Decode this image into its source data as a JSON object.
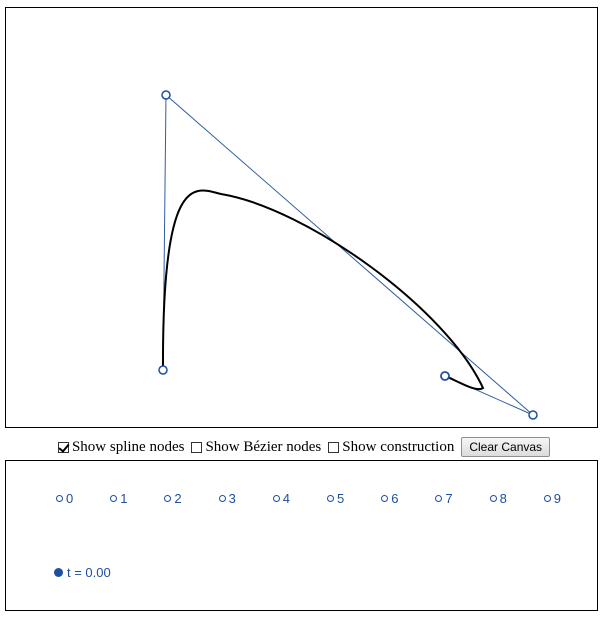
{
  "canvas": {
    "polygon_color": "#2e5f9e",
    "curve_color": "#000000",
    "node_color": "#1f4fa0"
  },
  "controls": {
    "show_spline_nodes": {
      "label": "Show spline nodes",
      "checked": true
    },
    "show_bezier_nodes": {
      "label": "Show Bézier nodes",
      "checked": false
    },
    "show_construction": {
      "label": "Show construction",
      "checked": false
    },
    "clear_label": "Clear Canvas"
  },
  "slider": {
    "ticks": [
      "0",
      "1",
      "2",
      "3",
      "4",
      "5",
      "6",
      "7",
      "8",
      "9"
    ],
    "t_label": "t = 0.00",
    "t_value": 0.0
  }
}
